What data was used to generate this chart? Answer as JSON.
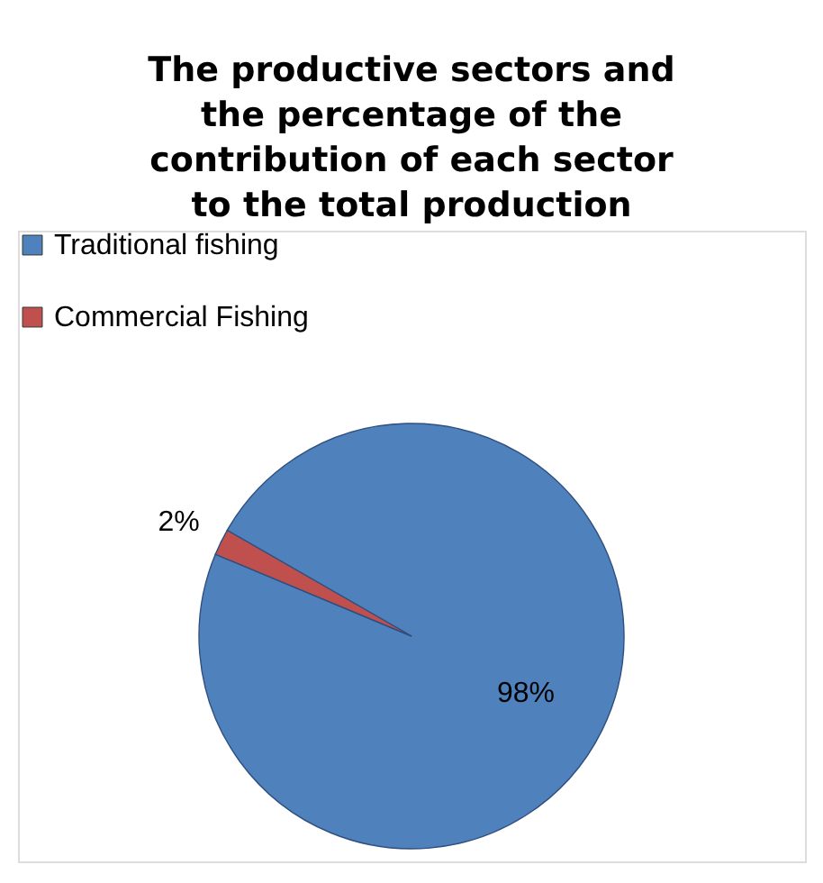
{
  "chart_data": {
    "type": "pie",
    "title": "The productive sectors and the percentage of the contribution of each sector to the total production",
    "categories": [
      "Traditional fishing",
      "Commercial Fishing"
    ],
    "values": [
      98,
      2
    ],
    "colors": [
      "#4f81bd",
      "#c0504d"
    ],
    "value_labels": [
      "98%",
      "2%"
    ],
    "legend": "top left"
  }
}
